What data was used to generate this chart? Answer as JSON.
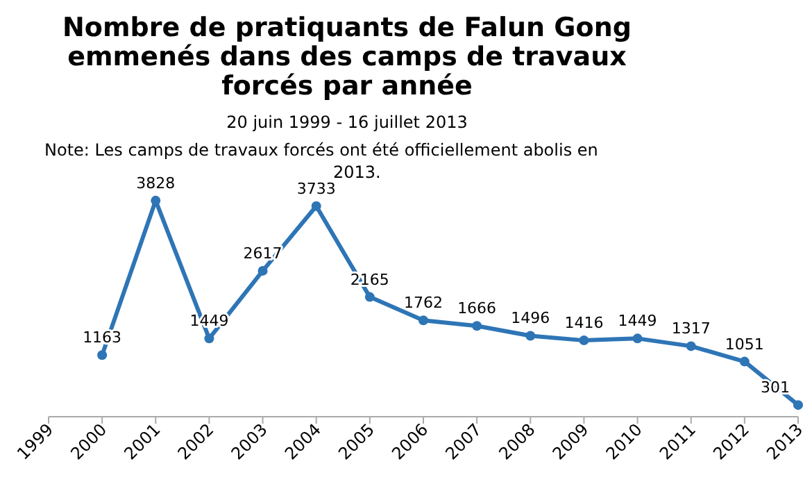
{
  "chart_data": {
    "type": "line",
    "title": "Nombre de pratiquants de Falun Gong emmenés dans des camps de travaux forcés par année",
    "subtitle": "20 juin 1999 - 16 juillet 2013",
    "annotations": [
      "Note: Les camps de travaux forcés ont été officiellement abolis en 2013."
    ],
    "categories": [
      "1999",
      "2000",
      "2001",
      "2002",
      "2003",
      "2004",
      "2005",
      "2006",
      "2007",
      "2008",
      "2009",
      "2010",
      "2011",
      "2012",
      "2013"
    ],
    "series": [
      {
        "color": "#2e75b6",
        "values": [
          null,
          1163,
          3828,
          1449,
          2617,
          3733,
          2165,
          1762,
          1666,
          1496,
          1416,
          1449,
          1317,
          1051,
          301
        ]
      }
    ],
    "data_labels": true,
    "marker": "circle"
  }
}
